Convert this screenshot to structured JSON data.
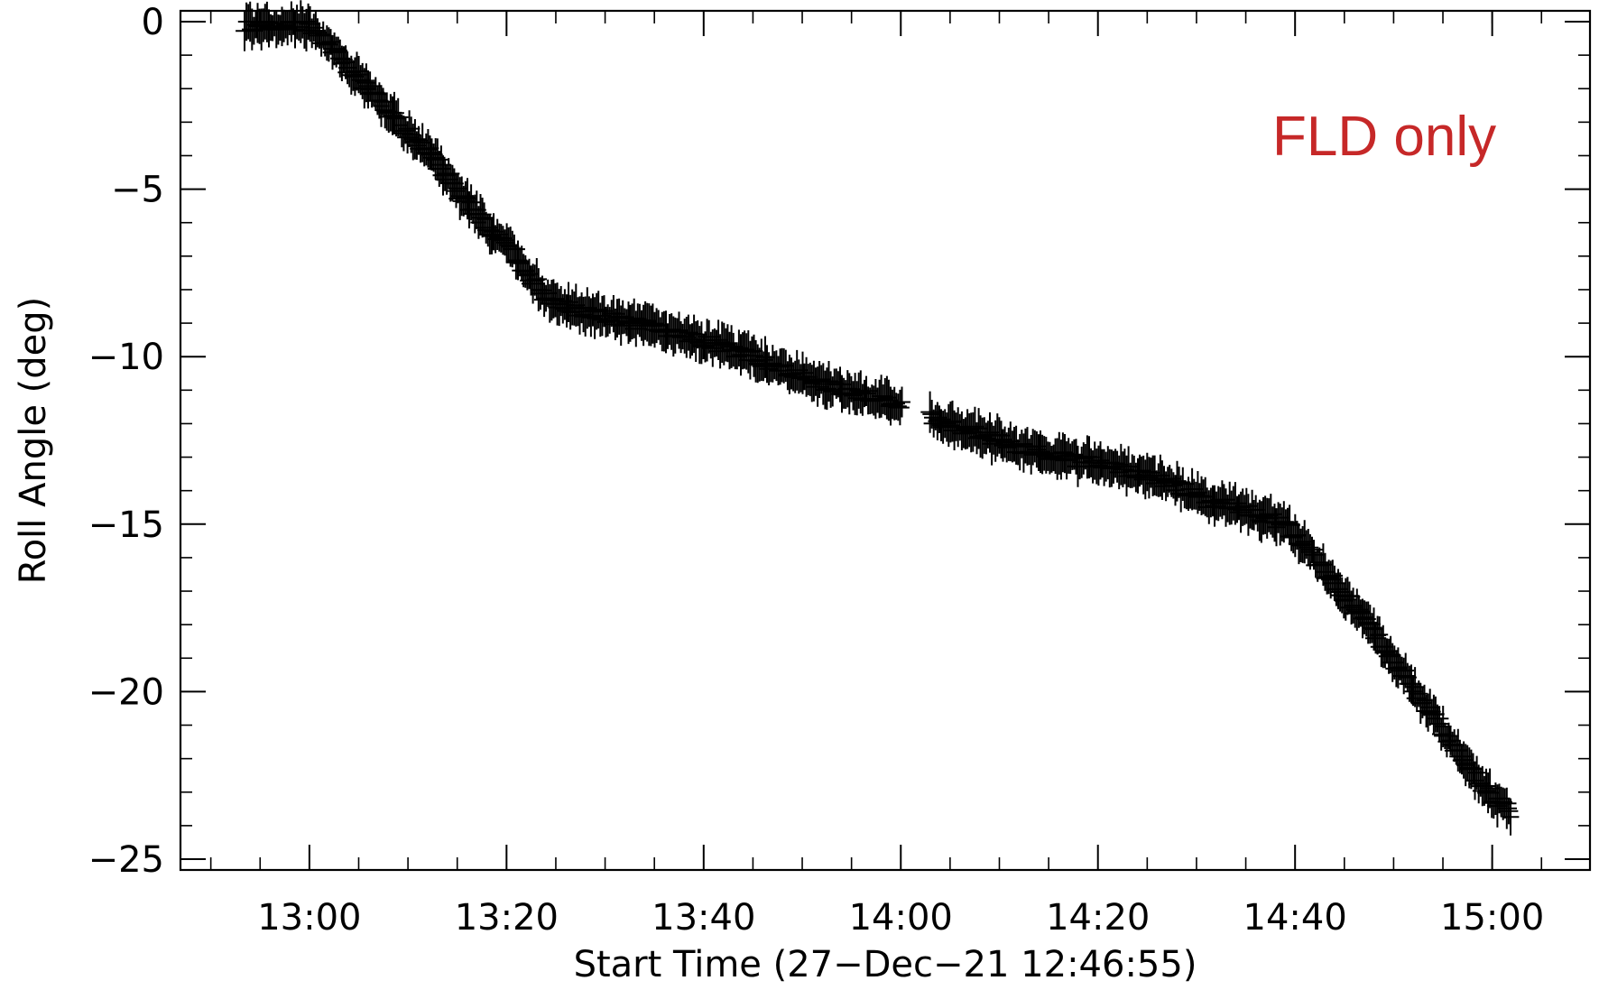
{
  "chart_data": {
    "type": "scatter",
    "xlabel": "Start Time (27−Dec−21 12:46:55)",
    "ylabel": "Roll Angle (deg)",
    "annotation": {
      "text": "FLD only",
      "color": "#c62828"
    },
    "x_unit": "minutes since 12:46:55",
    "xlim": [
      0,
      143
    ],
    "ylim": [
      -25,
      0
    ],
    "x_ticks": [
      {
        "value": 13.08,
        "label": "13:00"
      },
      {
        "value": 33.08,
        "label": "13:20"
      },
      {
        "value": 53.08,
        "label": "13:40"
      },
      {
        "value": 73.08,
        "label": "14:00"
      },
      {
        "value": 93.08,
        "label": "14:20"
      },
      {
        "value": 113.08,
        "label": "14:40"
      },
      {
        "value": 133.08,
        "label": "15:00"
      }
    ],
    "y_ticks": [
      {
        "value": 0,
        "label": "0"
      },
      {
        "value": -5,
        "label": "−5"
      },
      {
        "value": -10,
        "label": "−10"
      },
      {
        "value": -15,
        "label": "−15"
      },
      {
        "value": -20,
        "label": "−20"
      },
      {
        "value": -25,
        "label": "−25"
      }
    ],
    "marker": "plus",
    "trend_knots": [
      [
        6.5,
        -0.1
      ],
      [
        13.0,
        -0.1
      ],
      [
        16.0,
        -1.0
      ],
      [
        19.0,
        -2.0
      ],
      [
        22.0,
        -3.0
      ],
      [
        25.0,
        -3.9
      ],
      [
        28.0,
        -5.0
      ],
      [
        31.0,
        -6.1
      ],
      [
        34.0,
        -7.0
      ],
      [
        37.0,
        -8.2
      ],
      [
        40.0,
        -8.6
      ],
      [
        46.0,
        -9.0
      ],
      [
        50.0,
        -9.3
      ],
      [
        54.0,
        -9.6
      ],
      [
        58.0,
        -10.0
      ],
      [
        62.0,
        -10.5
      ],
      [
        66.0,
        -10.9
      ],
      [
        70.0,
        -11.2
      ],
      [
        73.0,
        -11.4
      ],
      [
        77.0,
        -11.9
      ],
      [
        81.0,
        -12.3
      ],
      [
        86.0,
        -12.8
      ],
      [
        91.0,
        -13.1
      ],
      [
        96.0,
        -13.4
      ],
      [
        100.0,
        -13.7
      ],
      [
        104.0,
        -14.3
      ],
      [
        108.0,
        -14.6
      ],
      [
        112.0,
        -15.0
      ],
      [
        115.0,
        -16.0
      ],
      [
        118.0,
        -17.1
      ],
      [
        121.0,
        -18.2
      ],
      [
        124.0,
        -19.4
      ],
      [
        127.0,
        -20.7
      ],
      [
        130.0,
        -22.0
      ],
      [
        133.0,
        -23.1
      ],
      [
        135.0,
        -23.6
      ]
    ],
    "gap": [
      73.2,
      76.0
    ]
  }
}
